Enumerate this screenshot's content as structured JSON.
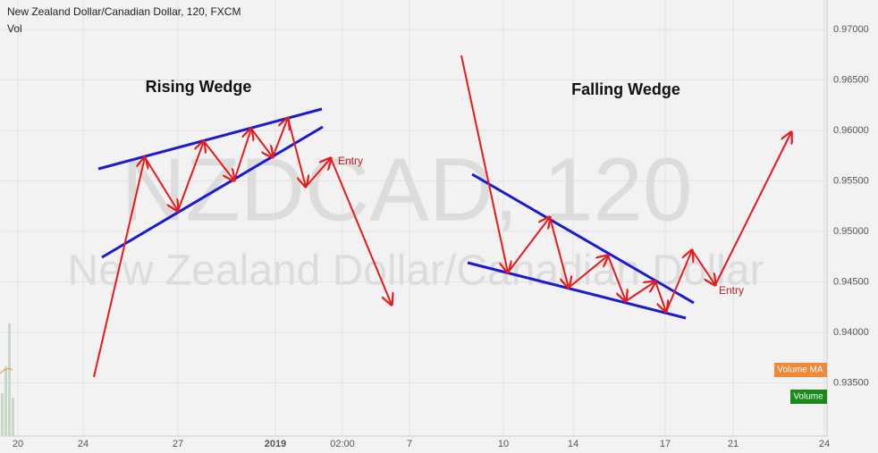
{
  "header": {
    "title": "New Zealand Dollar/Canadian Dollar, 120, FXCM",
    "indicator": "Vol"
  },
  "watermark": {
    "symbol": "NZDCAD, 120",
    "description": "New Zealand Dollar/Canadian Dollar"
  },
  "price_axis": [
    "0.97000",
    "0.96500",
    "0.96000",
    "0.95500",
    "0.95000",
    "0.94500",
    "0.94000",
    "0.93500"
  ],
  "time_axis": [
    "20",
    "24",
    "27",
    "2019",
    "02:00",
    "7",
    "10",
    "14",
    "17",
    "21",
    "24"
  ],
  "annotations": {
    "rising_title": "Rising Wedge",
    "falling_title": "Falling Wedge",
    "rising_entry": "Entry",
    "falling_entry": "Entry"
  },
  "badges": {
    "volume_ma": "Volume MA",
    "volume": "Volume"
  }
}
